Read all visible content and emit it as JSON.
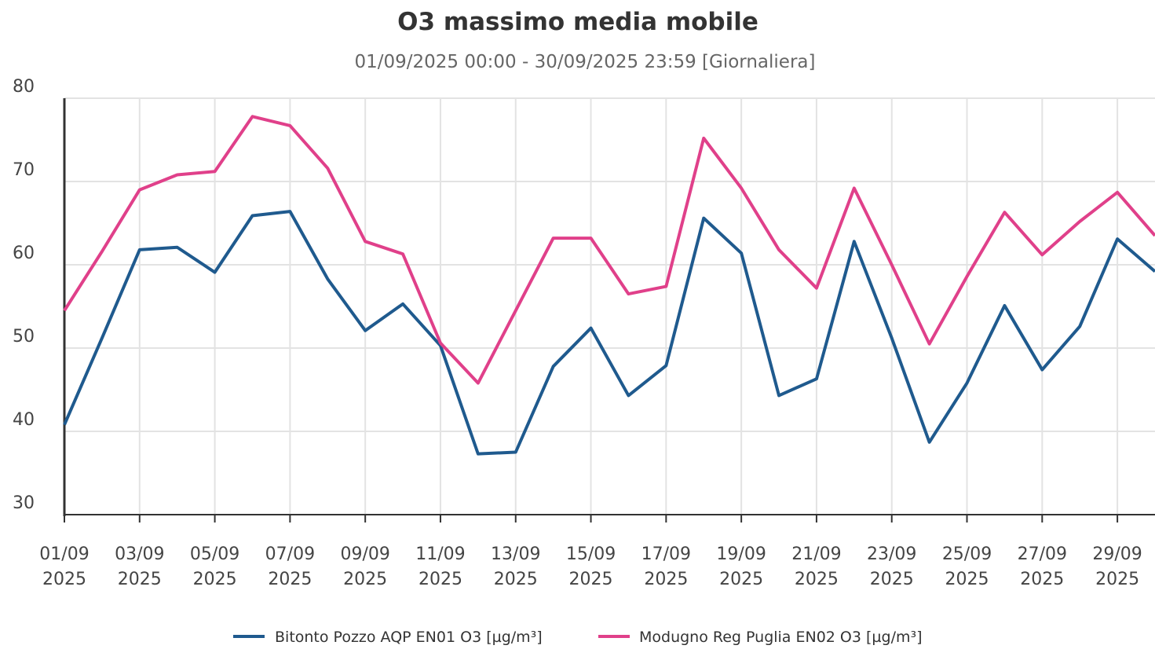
{
  "chart_data": {
    "type": "line",
    "title": "O3 massimo media mobile",
    "subtitle": "01/09/2025 00:00 - 30/09/2025 23:59 [Giornaliera]",
    "x": [
      "2025-09-01",
      "2025-09-02",
      "2025-09-03",
      "2025-09-04",
      "2025-09-05",
      "2025-09-06",
      "2025-09-07",
      "2025-09-08",
      "2025-09-09",
      "2025-09-10",
      "2025-09-11",
      "2025-09-12",
      "2025-09-13",
      "2025-09-14",
      "2025-09-15",
      "2025-09-16",
      "2025-09-17",
      "2025-09-18",
      "2025-09-19",
      "2025-09-20",
      "2025-09-21",
      "2025-09-22",
      "2025-09-23",
      "2025-09-24",
      "2025-09-25",
      "2025-09-26",
      "2025-09-27",
      "2025-09-28",
      "2025-09-29",
      "2025-09-30"
    ],
    "xlim": [
      "2025-09-01",
      "2025-09-30"
    ],
    "xticks": [
      {
        "value": "2025-09-01",
        "label": [
          "01/09",
          "2025"
        ]
      },
      {
        "value": "2025-09-03",
        "label": [
          "03/09",
          "2025"
        ]
      },
      {
        "value": "2025-09-05",
        "label": [
          "05/09",
          "2025"
        ]
      },
      {
        "value": "2025-09-07",
        "label": [
          "07/09",
          "2025"
        ]
      },
      {
        "value": "2025-09-09",
        "label": [
          "09/09",
          "2025"
        ]
      },
      {
        "value": "2025-09-11",
        "label": [
          "11/09",
          "2025"
        ]
      },
      {
        "value": "2025-09-13",
        "label": [
          "13/09",
          "2025"
        ]
      },
      {
        "value": "2025-09-15",
        "label": [
          "15/09",
          "2025"
        ]
      },
      {
        "value": "2025-09-17",
        "label": [
          "17/09",
          "2025"
        ]
      },
      {
        "value": "2025-09-19",
        "label": [
          "19/09",
          "2025"
        ]
      },
      {
        "value": "2025-09-21",
        "label": [
          "21/09",
          "2025"
        ]
      },
      {
        "value": "2025-09-23",
        "label": [
          "23/09",
          "2025"
        ]
      },
      {
        "value": "2025-09-25",
        "label": [
          "25/09",
          "2025"
        ]
      },
      {
        "value": "2025-09-27",
        "label": [
          "27/09",
          "2025"
        ]
      },
      {
        "value": "2025-09-29",
        "label": [
          "29/09",
          "2025"
        ]
      }
    ],
    "ylim": [
      30,
      80
    ],
    "yticks": [
      30,
      40,
      50,
      60,
      70,
      80
    ],
    "grid": true,
    "legend": "bottom",
    "series": [
      {
        "name": "Bitonto Pozzo AQP EN01 O3 [µg/m³]",
        "color": "#1f5a8e",
        "values": [
          40.8,
          51.2,
          61.8,
          62.1,
          59.1,
          65.9,
          66.4,
          58.3,
          52.1,
          55.3,
          50.3,
          37.3,
          37.5,
          47.8,
          52.4,
          44.3,
          47.9,
          65.6,
          61.4,
          44.3,
          46.3,
          62.8,
          51.2,
          38.7,
          45.8,
          55.1,
          47.4,
          52.6,
          63.1,
          59.2
        ]
      },
      {
        "name": "Modugno Reg Puglia EN02 O3 [µg/m³]",
        "color": "#e0408a",
        "values": [
          54.5,
          61.6,
          69.0,
          70.8,
          71.2,
          77.8,
          76.7,
          71.6,
          62.8,
          61.3,
          50.6,
          45.8,
          54.5,
          63.2,
          63.2,
          56.5,
          57.4,
          75.2,
          69.2,
          61.8,
          57.2,
          69.2,
          60.0,
          50.5,
          58.6,
          66.3,
          61.2,
          65.2,
          68.7,
          63.5
        ]
      }
    ]
  }
}
